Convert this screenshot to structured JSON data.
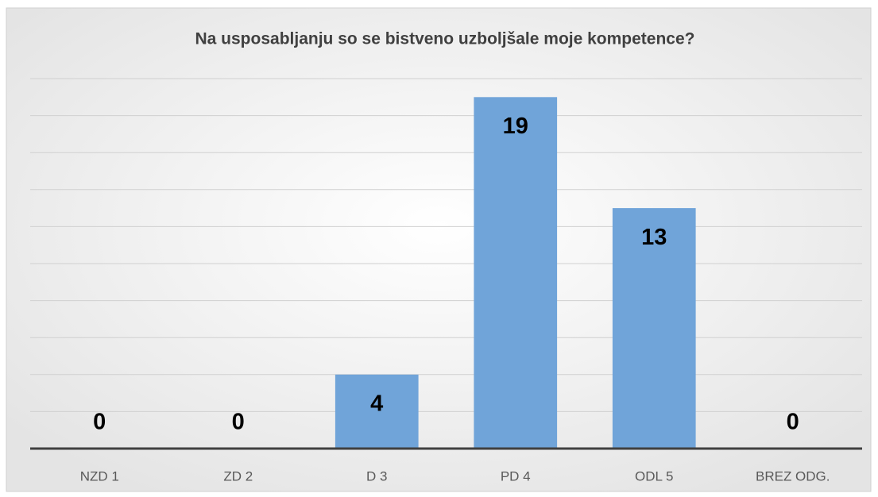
{
  "chart_data": {
    "type": "bar",
    "title": "Na usposabljanju so se bistveno uzboljšale moje kompetence?",
    "categories": [
      "NZD 1",
      "ZD 2",
      "D 3",
      "PD 4",
      "ODL 5",
      "BREZ ODG."
    ],
    "values": [
      0,
      0,
      4,
      19,
      13,
      0
    ],
    "color": "#70a4d9",
    "ylim": [
      0,
      20
    ],
    "yticks": [
      0,
      2,
      4,
      6,
      8,
      10,
      12,
      14,
      16,
      18,
      20
    ],
    "grid": true
  }
}
